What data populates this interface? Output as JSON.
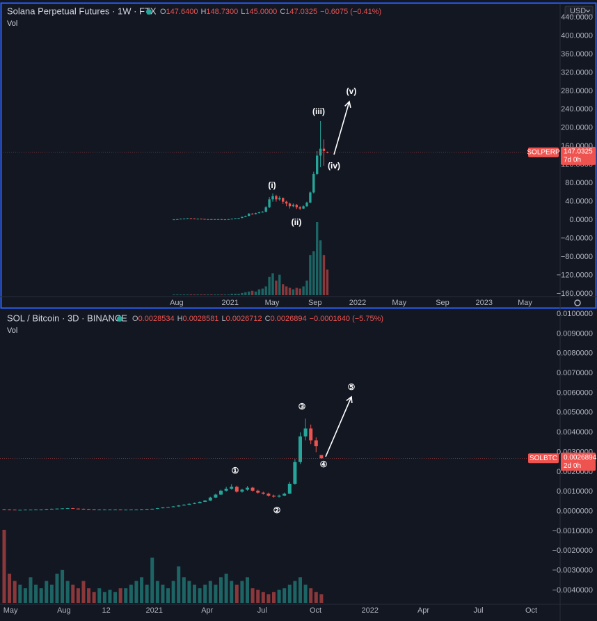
{
  "chart_data": [
    {
      "type": "candlestick",
      "title": "Solana Perpetual Futures · 1W · FTX",
      "ohlc": [
        {
          "label": "O",
          "value": "147.6400"
        },
        {
          "label": "H",
          "value": "148.7300"
        },
        {
          "label": "L",
          "value": "145.0000"
        },
        {
          "label": "C",
          "value": "147.0325"
        }
      ],
      "change": "−0.6075 (−0.41%)",
      "vol_label": "Vol",
      "currency": "USD",
      "symbol_tag": "SOLPERP",
      "countdown": "7d 0h",
      "annotations": [
        "(i)",
        "(ii)",
        "(iii)",
        "(iv)",
        "(v)"
      ],
      "up_color": "#26a69a",
      "down_color": "#ef5350",
      "categories": [
        null,
        null,
        null,
        null,
        null,
        null,
        null,
        null,
        null,
        null,
        null,
        null,
        null,
        null,
        null,
        null,
        null,
        null,
        null,
        null,
        null,
        null,
        null,
        null,
        null,
        null,
        null,
        null,
        null,
        null,
        null,
        null,
        null,
        null,
        null,
        null,
        null,
        null,
        null,
        null,
        null,
        null,
        null,
        null,
        null,
        null
      ],
      "open": [
        1.3,
        1.5,
        2,
        3,
        3.2,
        4,
        3.5,
        3,
        3,
        2.5,
        2,
        2,
        1.8,
        2,
        2,
        1.5,
        1.6,
        2,
        3,
        4,
        4.5,
        7,
        9,
        14,
        13,
        15,
        17,
        18,
        28,
        45,
        52,
        45,
        48,
        40,
        36,
        30,
        33,
        28,
        25,
        30,
        38,
        60,
        100,
        140,
        155,
        147.64
      ],
      "high": [
        1.8,
        2.2,
        3.3,
        3.6,
        4.4,
        4.3,
        3.7,
        3.4,
        3.2,
        2.7,
        2.3,
        2.2,
        2.1,
        2.3,
        2.2,
        1.8,
        2.2,
        3.2,
        4.3,
        4.8,
        7.5,
        9.8,
        15,
        15,
        16,
        18,
        19.5,
        30,
        50,
        58,
        55,
        52,
        49,
        42,
        38,
        36,
        35,
        30,
        32,
        40,
        62,
        105,
        150,
        215,
        175,
        148.73
      ],
      "low": [
        1.2,
        1.4,
        1.9,
        2.8,
        3,
        3.3,
        2.8,
        2.8,
        2.4,
        1.9,
        1.9,
        1.7,
        1.7,
        1.9,
        1.4,
        1.4,
        1.5,
        1.9,
        2.9,
        3.7,
        4.3,
        6.5,
        8.6,
        12,
        12.5,
        14.5,
        16,
        17,
        26,
        40,
        40,
        42,
        35,
        30,
        25,
        28,
        24,
        22,
        24,
        29,
        37,
        58,
        98,
        115,
        118,
        145
      ],
      "close": [
        1.5,
        2,
        3,
        3.2,
        4,
        3.5,
        3,
        3,
        2.5,
        2,
        2,
        1.8,
        2,
        2,
        1.5,
        1.6,
        2,
        3,
        4,
        4.5,
        7,
        9,
        14,
        13,
        15,
        17,
        18,
        28,
        45,
        52,
        45,
        48,
        40,
        36,
        30,
        33,
        28,
        25,
        30,
        38,
        60,
        100,
        140,
        155,
        150,
        147.0325
      ],
      "volume": [
        1,
        1,
        1,
        1,
        1,
        1,
        1,
        1,
        1,
        1,
        1,
        1,
        1,
        1,
        1,
        1,
        1,
        2,
        2,
        2,
        3,
        4,
        5,
        6,
        5,
        8,
        9,
        12,
        25,
        30,
        20,
        28,
        15,
        12,
        10,
        8,
        10,
        9,
        12,
        20,
        55,
        60,
        100,
        75,
        55,
        35
      ],
      "xlim": [
        -50.2,
        113.3
      ],
      "xticks": [
        {
          "value": 0.8,
          "label": "Aug"
        },
        {
          "value": 16.5,
          "label": "2021"
        },
        {
          "value": 28.8,
          "label": "May"
        },
        {
          "value": 41.4,
          "label": "Sep"
        },
        {
          "value": 53.9,
          "label": "2022"
        },
        {
          "value": 66.1,
          "label": "May"
        },
        {
          "value": 78.8,
          "label": "Sep"
        },
        {
          "value": 91,
          "label": "2023"
        },
        {
          "value": 103,
          "label": "May"
        }
      ],
      "ylim": [
        -160,
        440
      ],
      "yticks": [
        {
          "value": 440,
          "label": "440.0000"
        },
        {
          "value": 400,
          "label": "400.0000"
        },
        {
          "value": 360,
          "label": "360.0000"
        },
        {
          "value": 320,
          "label": "320.0000"
        },
        {
          "value": 280,
          "label": "280.0000"
        },
        {
          "value": 240,
          "label": "240.0000"
        },
        {
          "value": 200,
          "label": "200.0000"
        },
        {
          "value": 160,
          "label": "160.0000"
        },
        {
          "value": 120,
          "label": "120.0000"
        },
        {
          "value": 80,
          "label": "80.0000"
        },
        {
          "value": 40,
          "label": "40.0000"
        },
        {
          "value": 0,
          "label": "0.0000"
        },
        {
          "value": -40,
          "label": "−40.0000"
        },
        {
          "value": -80,
          "label": "−80.0000"
        },
        {
          "value": -120,
          "label": "−120.0000"
        },
        {
          "value": -160,
          "label": "−160.0000"
        }
      ]
    },
    {
      "type": "candlestick",
      "title": "SOL / Bitcoin · 3D · BINANCE",
      "ohlc": [
        {
          "label": "O",
          "value": "0.0028534"
        },
        {
          "label": "H",
          "value": "0.0028581"
        },
        {
          "label": "L",
          "value": "0.0026712"
        },
        {
          "label": "C",
          "value": "0.0026894"
        }
      ],
      "change": "−0.0001640 (−5.75%)",
      "vol_label": "Vol",
      "symbol_tag": "SOLBTC",
      "countdown": "2d 0h",
      "annotations": [
        "①",
        "②",
        "③",
        "④",
        "⑤"
      ],
      "up_color": "#26a69a",
      "down_color": "#ef5350",
      "categories": [
        null,
        null,
        null,
        null,
        null,
        null,
        null,
        null,
        null,
        null,
        null,
        null,
        null,
        null,
        null,
        null,
        null,
        null,
        null,
        null,
        null,
        null,
        null,
        null,
        null,
        null,
        null,
        null,
        null,
        null,
        null,
        null,
        null,
        null,
        null,
        null,
        null,
        null,
        null,
        null,
        null,
        null,
        null,
        null,
        null,
        null,
        null,
        null,
        null,
        null,
        null,
        null,
        null,
        null,
        null,
        null,
        null,
        null,
        null,
        null,
        null
      ],
      "open": [
        0.00011,
        0.0001,
        9e-05,
        8e-05,
        8e-05,
        9e-05,
        9e-05,
        0.0001,
        0.0001,
        0.00012,
        0.00013,
        0.00014,
        0.00015,
        0.00016,
        0.00014,
        0.00013,
        0.00012,
        0.00011,
        0.0001,
        0.0001,
        0.0001,
        0.0001,
        0.0001,
        9e-05,
        9e-05,
        0.0001,
        0.0001,
        0.00011,
        0.00012,
        0.00013,
        0.00016,
        0.0002,
        0.00022,
        0.00025,
        0.0003,
        0.00034,
        0.00038,
        0.00042,
        0.00048,
        0.00055,
        0.0007,
        0.00085,
        0.00105,
        0.00115,
        0.00125,
        0.001,
        0.0011,
        0.0012,
        0.00105,
        0.00095,
        0.0009,
        0.0008,
        0.00075,
        0.0008,
        0.0009,
        0.0014,
        0.0025,
        0.0038,
        0.0042,
        0.0036,
        0.0028534
      ],
      "high": [
        0.00012,
        0.00011,
        0.0001,
        9e-05,
        0.0001,
        0.0001,
        0.00011,
        0.00011,
        0.00013,
        0.00014,
        0.00015,
        0.00016,
        0.00017,
        0.00017,
        0.00015,
        0.00014,
        0.00013,
        0.00012,
        0.00011,
        0.00011,
        0.00011,
        0.00011,
        0.00011,
        0.0001,
        0.00011,
        0.00011,
        0.00012,
        0.00013,
        0.00014,
        0.00017,
        0.00022,
        0.00024,
        0.00027,
        0.00032,
        0.00037,
        0.00041,
        0.00045,
        0.00051,
        0.00058,
        0.00074,
        0.0009,
        0.0011,
        0.00125,
        0.00138,
        0.0013,
        0.00115,
        0.00128,
        0.00125,
        0.0011,
        0.001,
        0.00095,
        0.00085,
        0.00085,
        0.00095,
        0.0015,
        0.00265,
        0.004,
        0.0047,
        0.0044,
        0.00375,
        0.0028581
      ],
      "low": [
        9e-05,
        8e-05,
        7e-05,
        7e-05,
        7e-05,
        8e-05,
        8e-05,
        9e-05,
        9e-05,
        0.00011,
        0.00012,
        0.00013,
        0.00014,
        0.00013,
        0.00012,
        0.00011,
        0.0001,
        9e-05,
        9e-05,
        9e-05,
        9e-05,
        9e-05,
        8e-05,
        8e-05,
        8e-05,
        9e-05,
        9e-05,
        0.0001,
        0.00011,
        0.00012,
        0.00015,
        0.00019,
        0.00021,
        0.00024,
        0.00029,
        0.00033,
        0.00037,
        0.00041,
        0.00047,
        0.00053,
        0.00068,
        0.00083,
        0.001,
        0.0011,
        0.00095,
        0.00095,
        0.00105,
        0.001,
        0.0009,
        0.00085,
        0.00075,
        0.0007,
        0.0007,
        0.00078,
        0.00088,
        0.00135,
        0.0024,
        0.0036,
        0.0034,
        0.003,
        0.0026712
      ],
      "close": [
        0.0001,
        9e-05,
        8e-05,
        8e-05,
        9e-05,
        9e-05,
        0.0001,
        0.0001,
        0.00012,
        0.00013,
        0.00014,
        0.00015,
        0.00016,
        0.00014,
        0.00013,
        0.00012,
        0.00011,
        0.0001,
        0.0001,
        0.0001,
        0.0001,
        0.0001,
        9e-05,
        9e-05,
        0.0001,
        0.0001,
        0.00011,
        0.00012,
        0.00013,
        0.00016,
        0.0002,
        0.00022,
        0.00025,
        0.0003,
        0.00034,
        0.00038,
        0.00042,
        0.00048,
        0.00055,
        0.0007,
        0.00085,
        0.00105,
        0.00115,
        0.00125,
        0.001,
        0.0011,
        0.0012,
        0.00105,
        0.00095,
        0.0009,
        0.0008,
        0.00075,
        0.0008,
        0.0009,
        0.0014,
        0.0025,
        0.0038,
        0.0042,
        0.0036,
        0.0033,
        0.0026894
      ],
      "volume": [
        100,
        40,
        30,
        25,
        20,
        35,
        25,
        20,
        30,
        25,
        40,
        45,
        30,
        25,
        20,
        30,
        20,
        15,
        20,
        15,
        18,
        15,
        20,
        20,
        25,
        30,
        35,
        25,
        62,
        30,
        25,
        20,
        30,
        50,
        35,
        30,
        25,
        20,
        25,
        30,
        25,
        35,
        40,
        30,
        25,
        30,
        35,
        20,
        18,
        15,
        12,
        15,
        18,
        20,
        25,
        30,
        35,
        25,
        20,
        15,
        12
      ],
      "xlim": [
        -0.79,
        104.5
      ],
      "xticks": [
        {
          "value": 1.2,
          "label": "May"
        },
        {
          "value": 11.3,
          "label": "Aug"
        },
        {
          "value": 19.3,
          "label": "12"
        },
        {
          "value": 28.4,
          "label": "2021"
        },
        {
          "value": 38.4,
          "label": "Apr"
        },
        {
          "value": 48.8,
          "label": "Jul"
        },
        {
          "value": 58.9,
          "label": "Oct"
        },
        {
          "value": 69.2,
          "label": "2022"
        },
        {
          "value": 79.3,
          "label": "Apr"
        },
        {
          "value": 89.7,
          "label": "Jul"
        },
        {
          "value": 99.7,
          "label": "Oct"
        }
      ],
      "ylim": [
        -0.004,
        0.01
      ],
      "yticks": [
        {
          "value": 0.01,
          "label": "0.0100000"
        },
        {
          "value": 0.009,
          "label": "0.0090000"
        },
        {
          "value": 0.008,
          "label": "0.0080000"
        },
        {
          "value": 0.007,
          "label": "0.0070000"
        },
        {
          "value": 0.006,
          "label": "0.0060000"
        },
        {
          "value": 0.005,
          "label": "0.0050000"
        },
        {
          "value": 0.004,
          "label": "0.0040000"
        },
        {
          "value": 0.003,
          "label": "0.0030000"
        },
        {
          "value": 0.002,
          "label": "0.0020000"
        },
        {
          "value": 0.001,
          "label": "0.0010000"
        },
        {
          "value": 0,
          "label": "0.0000000"
        },
        {
          "value": -0.001,
          "label": "−0.0010000"
        },
        {
          "value": -0.002,
          "label": "−0.0020000"
        },
        {
          "value": -0.003,
          "label": "−0.0030000"
        },
        {
          "value": -0.004,
          "label": "−0.0040000"
        }
      ]
    }
  ]
}
